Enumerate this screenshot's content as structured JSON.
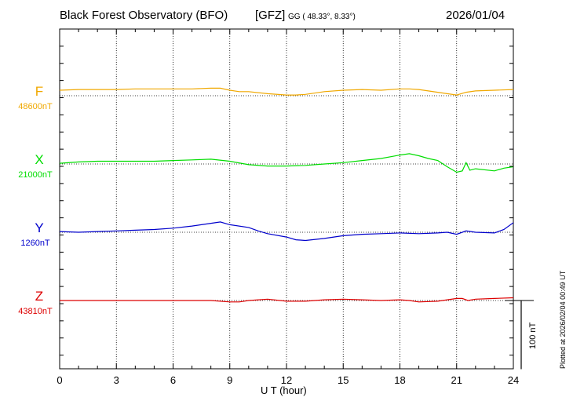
{
  "header": {
    "observatory": "Black Forest Observatory (BFO)",
    "network": "[GFZ]",
    "coords": "GG ( 48.33°,   8.33°)",
    "date": "2026/01/04"
  },
  "plotted_note": "Plotted at 2026/02/04 00:49 UT",
  "scale_label": "100 nT",
  "colors": {
    "F": "#f0a800",
    "X": "#00dd00",
    "Y": "#0000cc",
    "Z": "#dd0000"
  },
  "chart_data": {
    "type": "line",
    "xlabel": "U T (hour)",
    "xlim": [
      0,
      24
    ],
    "x_ticks": [
      "0",
      "3",
      "6",
      "9",
      "12",
      "15",
      "18",
      "21",
      "24"
    ],
    "grid": true,
    "y_units": "nT",
    "scale_bar_nT": 100,
    "series": [
      {
        "name": "F",
        "baseline_label": "48600nT",
        "baseline": 48600,
        "x": [
          0,
          1,
          2,
          3,
          4,
          5,
          6,
          7,
          8,
          8.5,
          9,
          9.5,
          10,
          11,
          12,
          12.5,
          13,
          14,
          15,
          16,
          17,
          18,
          18.5,
          19,
          20,
          20.5,
          21,
          21.5,
          22,
          23,
          24
        ],
        "y": [
          48608,
          48609,
          48609,
          48609,
          48610,
          48610,
          48610,
          48610,
          48611,
          48611,
          48608,
          48606,
          48606,
          48603,
          48601,
          48601,
          48602,
          48606,
          48608,
          48609,
          48608,
          48610,
          48610,
          48609,
          48605,
          48603,
          48601,
          48605,
          48607,
          48608,
          48609
        ]
      },
      {
        "name": "X",
        "baseline_label": "21000nT",
        "baseline": 21000,
        "x": [
          0,
          1,
          2,
          3,
          4,
          5,
          6,
          7,
          8,
          9,
          10,
          11,
          12,
          13,
          14,
          15,
          16,
          17,
          18,
          18.5,
          19,
          19.5,
          20,
          20.5,
          21,
          21.3,
          21.5,
          21.7,
          22,
          23,
          23.5,
          24
        ],
        "y": [
          21001,
          21003,
          21004,
          21004,
          21004,
          21004,
          21005,
          21006,
          21007,
          21004,
          20999,
          20997,
          20997,
          20998,
          21000,
          21002,
          21005,
          21008,
          21013,
          21015,
          21012,
          21008,
          21005,
          20996,
          20988,
          20990,
          21002,
          20991,
          20993,
          20990,
          20994,
          20996
        ]
      },
      {
        "name": "Y",
        "baseline_label": "1260nT",
        "baseline": 1260,
        "x": [
          0,
          1,
          2,
          3,
          4,
          5,
          6,
          7,
          8,
          8.5,
          9,
          10,
          10.5,
          11,
          12,
          12.5,
          13,
          14,
          15,
          16,
          17,
          18,
          19,
          20,
          20.5,
          21,
          21.5,
          22,
          23,
          23.5,
          24
        ],
        "y": [
          1261,
          1260,
          1261,
          1262,
          1263,
          1264,
          1266,
          1269,
          1273,
          1275,
          1271,
          1267,
          1262,
          1258,
          1253,
          1249,
          1248,
          1251,
          1255,
          1257,
          1258,
          1259,
          1258,
          1259,
          1260,
          1257,
          1262,
          1260,
          1259,
          1264,
          1274
        ]
      },
      {
        "name": "Z",
        "baseline_label": "43810nT",
        "baseline": 43810,
        "x": [
          0,
          1,
          2,
          3,
          4,
          5,
          6,
          7,
          8,
          9,
          9.5,
          10,
          11,
          12,
          12.5,
          13,
          14,
          15,
          16,
          17,
          18,
          18.5,
          19,
          20,
          20.5,
          21,
          21.3,
          21.6,
          22,
          23,
          24
        ],
        "y": [
          43810,
          43810,
          43810,
          43810,
          43810,
          43810,
          43810,
          43810,
          43810,
          43808,
          43808,
          43810,
          43812,
          43809,
          43809,
          43809,
          43811,
          43812,
          43811,
          43810,
          43811,
          43810,
          43808,
          43809,
          43811,
          43813,
          43813,
          43810,
          43812,
          43813,
          43814
        ]
      }
    ]
  }
}
